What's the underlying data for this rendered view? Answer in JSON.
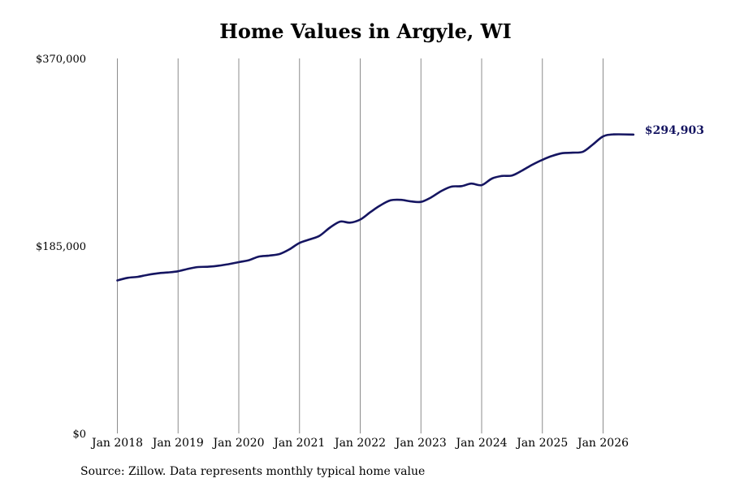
{
  "chart_data": {
    "type": "line",
    "title": "Home Values in Argyle, WI",
    "ylim": [
      0,
      370000
    ],
    "y_ticks": [
      {
        "value": 0,
        "label": "$0"
      },
      {
        "value": 185000,
        "label": "$185,000"
      },
      {
        "value": 370000,
        "label": "$370,000"
      }
    ],
    "x_ticks": [
      {
        "value": 2018.0,
        "label": "Jan 2018"
      },
      {
        "value": 2019.0,
        "label": "Jan 2019"
      },
      {
        "value": 2020.0,
        "label": "Jan 2020"
      },
      {
        "value": 2021.0,
        "label": "Jan 2021"
      },
      {
        "value": 2022.0,
        "label": "Jan 2022"
      },
      {
        "value": 2023.0,
        "label": "Jan 2023"
      },
      {
        "value": 2024.0,
        "label": "Jan 2024"
      },
      {
        "value": 2025.0,
        "label": "Jan 2025"
      },
      {
        "value": 2026.0,
        "label": "Jan 2026"
      }
    ],
    "xlim": [
      2018.0,
      2026.5
    ],
    "grid": "vertical",
    "line_color": "#151561",
    "series": [
      {
        "points": [
          [
            2018.0,
            151000
          ],
          [
            2018.17,
            153500
          ],
          [
            2018.33,
            154500
          ],
          [
            2018.5,
            156500
          ],
          [
            2018.67,
            158000
          ],
          [
            2018.83,
            158800
          ],
          [
            2019.0,
            160000
          ],
          [
            2019.17,
            162500
          ],
          [
            2019.33,
            164200
          ],
          [
            2019.5,
            164500
          ],
          [
            2019.67,
            165500
          ],
          [
            2019.83,
            167000
          ],
          [
            2020.0,
            169000
          ],
          [
            2020.17,
            171000
          ],
          [
            2020.33,
            174500
          ],
          [
            2020.5,
            175500
          ],
          [
            2020.67,
            177000
          ],
          [
            2020.83,
            181500
          ],
          [
            2021.0,
            188000
          ],
          [
            2021.17,
            191500
          ],
          [
            2021.33,
            195000
          ],
          [
            2021.5,
            203000
          ],
          [
            2021.67,
            209000
          ],
          [
            2021.83,
            208000
          ],
          [
            2022.0,
            211000
          ],
          [
            2022.17,
            218500
          ],
          [
            2022.33,
            225000
          ],
          [
            2022.5,
            230000
          ],
          [
            2022.67,
            230500
          ],
          [
            2022.83,
            229000
          ],
          [
            2023.0,
            228500
          ],
          [
            2023.17,
            233000
          ],
          [
            2023.33,
            239000
          ],
          [
            2023.5,
            243500
          ],
          [
            2023.67,
            244000
          ],
          [
            2023.83,
            246500
          ],
          [
            2024.0,
            245000
          ],
          [
            2024.17,
            251500
          ],
          [
            2024.33,
            254000
          ],
          [
            2024.5,
            254500
          ],
          [
            2024.67,
            259500
          ],
          [
            2024.83,
            265000
          ],
          [
            2025.0,
            270000
          ],
          [
            2025.17,
            274000
          ],
          [
            2025.33,
            276500
          ],
          [
            2025.5,
            277000
          ],
          [
            2025.67,
            278000
          ],
          [
            2025.83,
            285000
          ],
          [
            2026.0,
            293000
          ],
          [
            2026.17,
            295000
          ],
          [
            2026.5,
            294903
          ]
        ]
      }
    ],
    "end_label": "$294,903"
  },
  "source_text": "Source: Zillow. Data represents monthly typical home value"
}
